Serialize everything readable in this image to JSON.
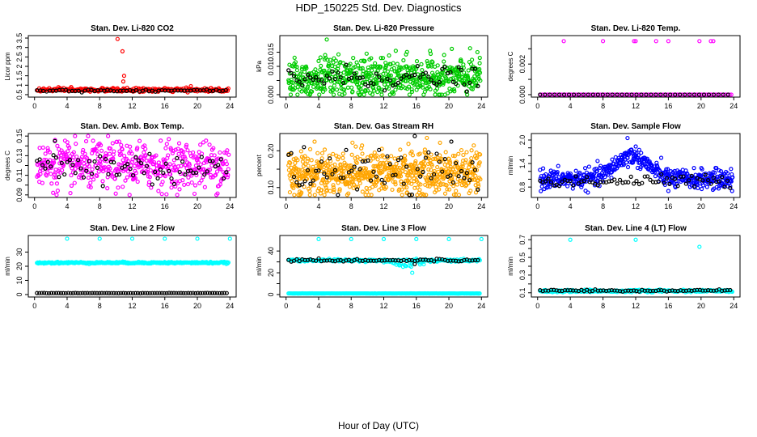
{
  "figure": {
    "title": "HDP_150225  Std. Dev. Diagnostics",
    "xlabel": "Hour of Day (UTC)"
  },
  "chart_data": [
    {
      "type": "scatter",
      "title": "Stan. Dev. Li-820 CO2",
      "xlabel": "",
      "ylabel": "Licor ppm",
      "xlim": [
        0,
        24
      ],
      "xticks": [
        0,
        4,
        8,
        12,
        16,
        20,
        24
      ],
      "ylim": [
        0.5,
        3.5
      ],
      "yticks": [
        0.5,
        1.0,
        1.5,
        2.0,
        2.5,
        3.0,
        3.5
      ],
      "grid": false,
      "series": [
        {
          "color": "#ff0000",
          "base": 0.75,
          "spread": 0.05,
          "n": 260,
          "outliers": [
            [
              10.2,
              3.45
            ],
            [
              10.8,
              2.8
            ],
            [
              11.0,
              1.5
            ],
            [
              10.9,
              1.2
            ],
            [
              4.5,
              0.9
            ],
            [
              19.2,
              0.95
            ],
            [
              21.7,
              0.85
            ],
            [
              1.8,
              0.85
            ]
          ]
        },
        {
          "color": "#000000",
          "base": 0.72,
          "spread": 0.03,
          "n": 60,
          "outliers": []
        }
      ]
    },
    {
      "type": "scatter",
      "title": "Stan. Dev. Li-820 Pressure",
      "xlabel": "",
      "ylabel": "kPa",
      "xlim": [
        0,
        24
      ],
      "xticks": [
        0,
        4,
        8,
        12,
        16,
        20,
        24
      ],
      "ylim": [
        0.0,
        0.02
      ],
      "yticks": [
        0.0,
        0.005,
        0.01,
        0.015
      ],
      "ytick_labels": [
        "0.000",
        "",
        "0.010",
        "0.015"
      ],
      "grid": false,
      "series": [
        {
          "color": "#00cc00",
          "base": 0.006,
          "spread": 0.0035,
          "n": 600,
          "outliers": [
            [
              5.0,
              0.0195
            ],
            [
              4.8,
              0.014
            ],
            [
              23.8,
              0.013
            ],
            [
              9.5,
              0.012
            ]
          ]
        },
        {
          "color": "#000000",
          "base": 0.006,
          "spread": 0.002,
          "n": 70,
          "outliers": []
        }
      ]
    },
    {
      "type": "scatter",
      "title": "Stan. Dev. Li-820 Temp.",
      "xlabel": "",
      "ylabel": "degrees C",
      "xlim": [
        0,
        24
      ],
      "xticks": [
        0,
        4,
        8,
        12,
        16,
        20,
        24
      ],
      "ylim": [
        0.0,
        0.0037
      ],
      "yticks": [
        0.0,
        0.001,
        0.002,
        0.003
      ],
      "ytick_labels": [
        "0.000",
        "",
        "0.002",
        ""
      ],
      "grid": false,
      "series": [
        {
          "color": "#ff00ff",
          "base": 0.0,
          "spread": 0.0,
          "n": 120,
          "outliers": [
            [
              3.2,
              0.0035
            ],
            [
              8.0,
              0.0035
            ],
            [
              11.8,
              0.0035
            ],
            [
              12.0,
              0.0035
            ],
            [
              14.5,
              0.0035
            ],
            [
              16.0,
              0.0035
            ],
            [
              19.8,
              0.0035
            ],
            [
              21.2,
              0.0035
            ],
            [
              21.5,
              0.0035
            ]
          ]
        },
        {
          "color": "#000000",
          "base": 0.0,
          "spread": 0.0,
          "n": 40,
          "outliers": []
        }
      ]
    },
    {
      "type": "scatter",
      "title": "Stan. Dev. Amb. Box Temp.",
      "xlabel": "",
      "ylabel": "degrees C",
      "xlim": [
        0,
        24
      ],
      "xticks": [
        0,
        4,
        8,
        12,
        16,
        20,
        24
      ],
      "ylim": [
        0.09,
        0.15
      ],
      "yticks": [
        0.09,
        0.1,
        0.11,
        0.12,
        0.13,
        0.14,
        0.15
      ],
      "ytick_labels": [
        "0.09",
        "",
        "0.11",
        "",
        "0.13",
        "",
        "0.15"
      ],
      "grid": false,
      "series": [
        {
          "color": "#ff00ff",
          "base": 0.12,
          "spread": 0.012,
          "n": 500,
          "outliers": []
        },
        {
          "color": "#000000",
          "base": 0.118,
          "spread": 0.01,
          "n": 70,
          "outliers": [
            [
              2.5,
              0.145
            ]
          ]
        }
      ]
    },
    {
      "type": "scatter",
      "title": "Stan. Dev. Gas Stream RH",
      "xlabel": "",
      "ylabel": "percent",
      "xlim": [
        0,
        24
      ],
      "xticks": [
        0,
        4,
        8,
        12,
        16,
        20,
        24
      ],
      "ylim": [
        0.08,
        0.24
      ],
      "yticks": [
        0.1,
        0.15,
        0.2
      ],
      "ytick_labels": [
        "0.10",
        "",
        "0.20"
      ],
      "grid": false,
      "series": [
        {
          "color": "#ffa500",
          "base": 0.14,
          "spread": 0.03,
          "n": 700,
          "outliers": [
            [
              17.3,
              0.235
            ]
          ]
        },
        {
          "color": "#000000",
          "base": 0.14,
          "spread": 0.03,
          "n": 70,
          "outliers": [
            [
              2.2,
              0.21
            ],
            [
              20.3,
              0.225
            ]
          ]
        }
      ]
    },
    {
      "type": "scatter",
      "title": "Stan. Dev. Sample Flow",
      "xlabel": "",
      "ylabel": "ml/min",
      "xlim": [
        0,
        24
      ],
      "xticks": [
        0,
        4,
        8,
        12,
        16,
        20,
        24
      ],
      "ylim": [
        0.6,
        2.1
      ],
      "yticks": [
        0.8,
        1.0,
        1.2,
        1.4,
        1.6,
        1.8,
        2.0
      ],
      "ytick_labels": [
        "0.8",
        "",
        "",
        "1.4",
        "",
        "",
        "2.0"
      ],
      "grid": false,
      "series": [
        {
          "color": "#0000ff",
          "base": 1.0,
          "spread": 0.12,
          "n": 500,
          "hump": [
            11.5,
            0.6,
            4.0
          ],
          "outliers": [
            [
              11.0,
              2.05
            ],
            [
              16.0,
              0.7
            ],
            [
              23.8,
              0.7
            ]
          ]
        },
        {
          "color": "#000000",
          "base": 0.95,
          "spread": 0.08,
          "n": 70,
          "outliers": []
        }
      ]
    },
    {
      "type": "scatter",
      "title": "Stan. Dev. Line 2 Flow",
      "xlabel": "",
      "ylabel": "ml/min",
      "xlim": [
        0,
        24
      ],
      "xticks": [
        0,
        4,
        8,
        12,
        16,
        20,
        24
      ],
      "ylim": [
        0,
        40
      ],
      "yticks": [
        0,
        10,
        20,
        30
      ],
      "grid": false,
      "series": [
        {
          "color": "#00ffff",
          "base": 22.5,
          "spread": 0.3,
          "n": 280,
          "outliers": [
            [
              4.0,
              39.5
            ],
            [
              8.0,
              39.5
            ],
            [
              12.0,
              39.5
            ],
            [
              16.0,
              39.5
            ],
            [
              20.0,
              39.5
            ],
            [
              24.0,
              39.5
            ]
          ]
        },
        {
          "color": "#000000",
          "base": 1.0,
          "spread": 0.05,
          "n": 80,
          "outliers": []
        }
      ]
    },
    {
      "type": "scatter",
      "title": "Stan. Dev. Line 3 Flow",
      "xlabel": "",
      "ylabel": "ml/min",
      "xlim": [
        0,
        24
      ],
      "xticks": [
        0,
        4,
        8,
        12,
        16,
        20,
        24
      ],
      "ylim": [
        0,
        52
      ],
      "yticks": [
        0,
        10,
        20,
        30,
        40
      ],
      "ytick_labels": [
        "0",
        "",
        "20",
        "",
        "40"
      ],
      "grid": false,
      "series": [
        {
          "color": "#00ffff",
          "base": 31.5,
          "spread": 0.5,
          "n": 260,
          "dip": [
            15.0,
            6.0,
            3.0
          ],
          "outliers": [
            [
              4.0,
              51
            ],
            [
              8.0,
              51
            ],
            [
              12.0,
              51
            ],
            [
              16.0,
              51
            ],
            [
              20.0,
              51
            ],
            [
              24.0,
              51
            ],
            [
              15.5,
              20
            ]
          ]
        },
        {
          "color": "#00ffff",
          "base": 1.0,
          "spread": 0.05,
          "n": 200,
          "outliers": []
        },
        {
          "color": "#000000",
          "base": 31.5,
          "spread": 0.6,
          "n": 70,
          "outliers": [
            [
              15.8,
              28
            ]
          ]
        }
      ]
    },
    {
      "type": "scatter",
      "title": "Stan. Dev. Line 4 (LT) Flow",
      "xlabel": "",
      "ylabel": "ml/min",
      "xlim": [
        0,
        24
      ],
      "xticks": [
        0,
        4,
        8,
        12,
        16,
        20,
        24
      ],
      "ylim": [
        0.08,
        0.72
      ],
      "yticks": [
        0.1,
        0.2,
        0.3,
        0.4,
        0.5,
        0.6,
        0.7
      ],
      "ytick_labels": [
        "0.1",
        "",
        "0.3",
        "",
        "0.5",
        "",
        "0.7"
      ],
      "grid": false,
      "series": [
        {
          "color": "#00ffff",
          "base": 0.12,
          "spread": 0.006,
          "n": 280,
          "outliers": [
            [
              4.0,
              0.7
            ],
            [
              12.0,
              0.7
            ],
            [
              19.8,
              0.62
            ]
          ]
        },
        {
          "color": "#000000",
          "base": 0.125,
          "spread": 0.006,
          "n": 70,
          "outliers": []
        }
      ]
    }
  ]
}
